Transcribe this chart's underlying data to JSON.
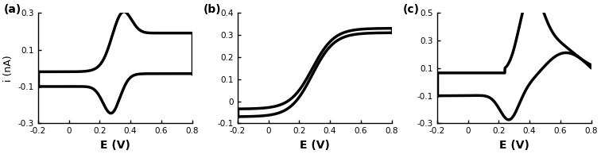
{
  "subplots": [
    {
      "label": "(a)",
      "xlabel": "E (V)",
      "ylabel": "i (nA)",
      "xlim": [
        -0.2,
        0.8
      ],
      "ylim": [
        -0.3,
        0.3
      ],
      "xticks": [
        -0.2,
        0,
        0.2,
        0.4,
        0.6,
        0.8
      ],
      "yticks": [
        -0.3,
        -0.1,
        0.1,
        0.3
      ],
      "ytick_labels": [
        "-0.3",
        "-0.1",
        "0.1",
        "0.3"
      ]
    },
    {
      "label": "(b)",
      "xlabel": "E (V)",
      "ylabel": "",
      "xlim": [
        -0.2,
        0.8
      ],
      "ylim": [
        -0.1,
        0.4
      ],
      "xticks": [
        -0.2,
        0,
        0.2,
        0.4,
        0.6,
        0.8
      ],
      "yticks": [
        -0.1,
        0,
        0.1,
        0.2,
        0.3,
        0.4
      ],
      "ytick_labels": [
        "-0.1",
        "0",
        "0.1",
        "0.2",
        "0.3",
        "0.4"
      ]
    },
    {
      "label": "(c)",
      "xlabel": "E (V)",
      "ylabel": "",
      "xlim": [
        -0.2,
        0.8
      ],
      "ylim": [
        -0.3,
        0.5
      ],
      "xticks": [
        -0.2,
        0,
        0.2,
        0.4,
        0.6,
        0.8
      ],
      "yticks": [
        -0.3,
        -0.1,
        0.1,
        0.3,
        0.5
      ],
      "ytick_labels": [
        "-0.3",
        "-0.1",
        "0.1",
        "0.3",
        "0.5"
      ]
    }
  ],
  "background_color": "#ffffff",
  "line_color": "#000000",
  "line_width": 2.5,
  "tick_fontsize": 7.5,
  "xlabel_fontsize": 10,
  "ylabel_fontsize": 9,
  "label_fontsize": 10
}
